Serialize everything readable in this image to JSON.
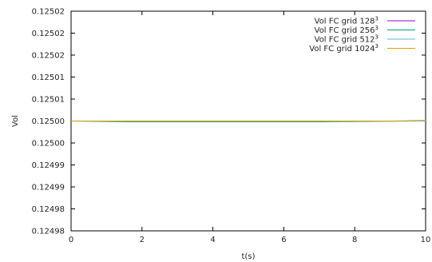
{
  "chart_data": {
    "type": "line",
    "xlabel": "t(s)",
    "ylabel": "Vol",
    "xlim": [
      0,
      10
    ],
    "ylim": [
      0.124975,
      0.125025
    ],
    "x_ticks": [
      0,
      2,
      4,
      6,
      8,
      10
    ],
    "x_tick_labels": [
      "0",
      "2",
      "4",
      "6",
      "8",
      "10"
    ],
    "y_ticks": [
      0.124975,
      0.12498,
      0.124985,
      0.12499,
      0.124995,
      0.125,
      0.125005,
      0.12501,
      0.125015,
      0.12502,
      0.125025
    ],
    "y_tick_labels": [
      "0.12498",
      "0.12498",
      "0.12499",
      "0.12499",
      "0.12500",
      "0.12500",
      "0.12501",
      "0.12501",
      "0.12502",
      "0.12502",
      "0.12502"
    ],
    "grid": false,
    "legend_position": "top-right",
    "series": [
      {
        "name": "Vol FC grid 128",
        "sup": "3",
        "color": "#9400d3",
        "x": [
          0,
          2,
          4,
          6,
          8,
          10
        ],
        "y": [
          0.125,
          0.125,
          0.125,
          0.125,
          0.125,
          0.125
        ]
      },
      {
        "name": "Vol FC grid 256",
        "sup": "3",
        "color": "#009e73",
        "x": [
          0,
          1.6,
          7.0,
          10
        ],
        "y": [
          0.125,
          0.12499985,
          0.12499985,
          0.125
        ]
      },
      {
        "name": "Vol FC grid 512",
        "sup": "3",
        "color": "#56b4e9",
        "x": [
          0,
          2,
          4,
          6,
          8,
          10
        ],
        "y": [
          0.125,
          0.125,
          0.125,
          0.125,
          0.125,
          0.125
        ]
      },
      {
        "name": "Vol FC grid 1024",
        "sup": "3",
        "color": "#e69f00",
        "x": [
          0,
          9.0,
          10
        ],
        "y": [
          0.125,
          0.125,
          0.12500015
        ]
      }
    ]
  }
}
